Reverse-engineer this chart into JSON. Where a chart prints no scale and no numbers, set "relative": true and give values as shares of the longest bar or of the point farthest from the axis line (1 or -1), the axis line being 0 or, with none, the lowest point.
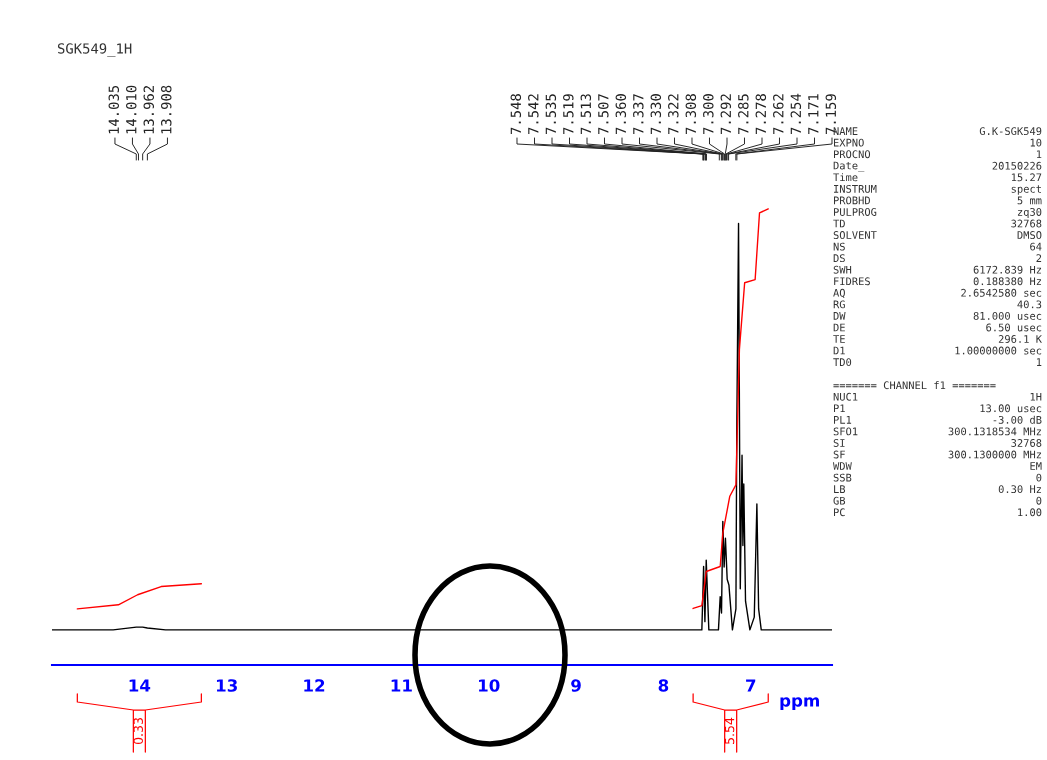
{
  "chart_data": {
    "type": "line",
    "title": "SGK549_1H",
    "xlabel": "ppm",
    "relative": true,
    "xlim": [
      15.0,
      6.07
    ],
    "xticks": [
      14,
      13,
      12,
      11,
      10,
      9,
      8,
      7
    ],
    "series": [
      {
        "color": "#000000",
        "x": [
          15.0,
          14.3,
          14.035,
          14.01,
          13.962,
          13.908,
          13.7,
          7.6,
          7.56,
          7.54,
          7.525,
          7.51,
          7.48,
          7.43,
          7.37,
          7.35,
          7.335,
          7.32,
          7.305,
          7.29,
          7.27,
          7.25,
          7.21,
          7.17,
          7.16,
          7.14,
          7.12,
          7.1,
          7.09,
          7.08,
          7.06,
          7.01,
          6.96,
          6.93,
          6.91,
          6.88,
          6.07
        ],
        "values": [
          0.077,
          0.077,
          0.083,
          0.083,
          0.083,
          0.081,
          0.077,
          0.077,
          0.077,
          0.216,
          0.095,
          0.23,
          0.077,
          0.077,
          0.077,
          0.15,
          0.114,
          0.315,
          0.215,
          0.278,
          0.188,
          0.175,
          0.077,
          0.123,
          0.523,
          0.968,
          0.167,
          0.46,
          0.262,
          0.397,
          0.14,
          0.077,
          0.105,
          0.353,
          0.123,
          0.077,
          0.077
        ]
      },
      {
        "color": "#ff0000",
        "x": [
          14.71,
          14.24,
          14.02,
          13.75,
          13.29
        ],
        "values": [
          0.123,
          0.132,
          0.154,
          0.172,
          0.178
        ]
      },
      {
        "color": "#ff0000",
        "x": [
          7.66,
          7.56,
          7.51,
          7.35,
          7.32,
          7.24,
          7.17,
          7.13,
          7.07,
          6.95,
          6.9,
          6.8
        ],
        "values": [
          0.124,
          0.13,
          0.205,
          0.216,
          0.289,
          0.37,
          0.395,
          0.692,
          0.838,
          0.845,
          0.991,
          1.0
        ]
      }
    ],
    "annotations": [
      {
        "text": "14.035",
        "x": 14.035
      },
      {
        "text": "14.010",
        "x": 14.01
      },
      {
        "text": "13.962",
        "x": 13.962
      },
      {
        "text": "13.908",
        "x": 13.908
      },
      {
        "text": "7.548",
        "x": 7.548
      },
      {
        "text": "7.542",
        "x": 7.542
      },
      {
        "text": "7.535",
        "x": 7.535
      },
      {
        "text": "7.519",
        "x": 7.519
      },
      {
        "text": "7.513",
        "x": 7.513
      },
      {
        "text": "7.507",
        "x": 7.507
      },
      {
        "text": "7.360",
        "x": 7.36
      },
      {
        "text": "7.337",
        "x": 7.337
      },
      {
        "text": "7.330",
        "x": 7.33
      },
      {
        "text": "7.322",
        "x": 7.322
      },
      {
        "text": "7.308",
        "x": 7.308
      },
      {
        "text": "7.300",
        "x": 7.3
      },
      {
        "text": "7.292",
        "x": 7.292
      },
      {
        "text": "7.285",
        "x": 7.285
      },
      {
        "text": "7.278",
        "x": 7.278
      },
      {
        "text": "7.262",
        "x": 7.262
      },
      {
        "text": "7.254",
        "x": 7.254
      },
      {
        "text": "7.171",
        "x": 7.171
      },
      {
        "text": "7.159",
        "x": 7.159
      },
      "0.33",
      "5.54",
      "NAME G.K-SGK549",
      "EXPNO 10",
      "PROCNO 1",
      "Date_ 20150226",
      "Time 15.27",
      "INSTRUM spect",
      "PROBHD 5 mm",
      "PULPROG zq30",
      "TD 32768",
      "SOLVENT DMSO",
      "NS 64",
      "DS 2",
      "SWH 6172.839 Hz",
      "FIDRES 0.188380 Hz",
      "AQ 2.6542580 sec",
      "RG 40.3",
      "DW 81.000 usec",
      "DE 6.50 usec",
      "TE 296.1 K",
      "D1 1.00000000 sec",
      "TD0 1",
      "======= CHANNEL f1 =======",
      "NUC1 1H",
      "P1 13.00 usec",
      "PL1 -3.00 dB",
      "SFO1 300.1318534 MHz",
      "SI 32768",
      "SF 300.1300000 MHz",
      "WDW EM",
      "SSB 0",
      "LB 0.30 Hz",
      "GB 0",
      "PC 1.00"
    ]
  }
}
